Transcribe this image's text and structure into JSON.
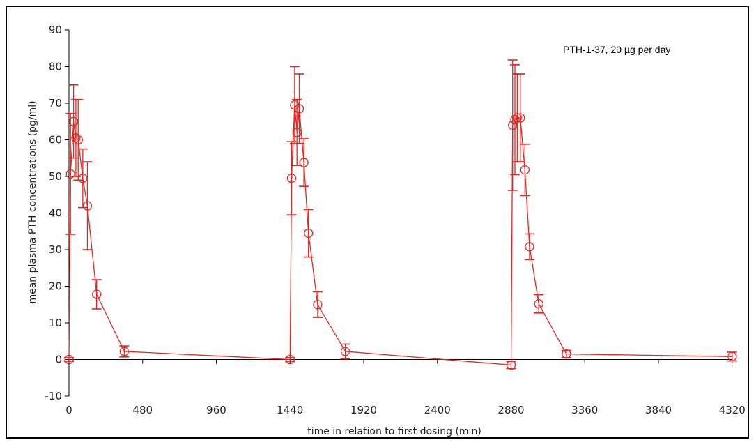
{
  "chart_data": {
    "type": "line",
    "xlabel": "time in relation to first dosing (min)",
    "ylabel": "mean plasma PTH concentrations (pg/ml)",
    "annotation": "PTH-1-37, 20 µg per day",
    "xlim": [
      0,
      4380
    ],
    "ylim": [
      -10,
      90
    ],
    "xticks": [
      0,
      480,
      960,
      1440,
      1920,
      2400,
      2880,
      3360,
      3840,
      4320
    ],
    "yticks": [
      -10,
      0,
      10,
      20,
      30,
      40,
      50,
      60,
      70,
      80,
      90
    ],
    "series": [
      {
        "color": "#e8241f",
        "marker": "circle",
        "points": [
          {
            "x": 0,
            "y": 0,
            "err": 0.5
          },
          {
            "x": 10,
            "y": 50.7,
            "err": 16.5
          },
          {
            "x": 30,
            "y": 65,
            "err": 10
          },
          {
            "x": 45,
            "y": 60.5,
            "err": 10.5
          },
          {
            "x": 60,
            "y": 60,
            "err": 11
          },
          {
            "x": 90,
            "y": 49.5,
            "err": 8
          },
          {
            "x": 120,
            "y": 42,
            "err": 12
          },
          {
            "x": 180,
            "y": 17.8,
            "err": 4
          },
          {
            "x": 360,
            "y": 2.2,
            "err": 1.5
          },
          {
            "x": 1440,
            "y": 0,
            "err": 0.5
          },
          {
            "x": 1450,
            "y": 49.5,
            "err": 10
          },
          {
            "x": 1470,
            "y": 69.5,
            "err": 10.5
          },
          {
            "x": 1485,
            "y": 62,
            "err": 9
          },
          {
            "x": 1500,
            "y": 68.5,
            "err": 9.5
          },
          {
            "x": 1530,
            "y": 53.8,
            "err": 6.5
          },
          {
            "x": 1560,
            "y": 34.5,
            "err": 6.5
          },
          {
            "x": 1620,
            "y": 15,
            "err": 3.5
          },
          {
            "x": 1800,
            "y": 2.2,
            "err": 2
          },
          {
            "x": 2880,
            "y": -1.5,
            "err": 1
          },
          {
            "x": 2890,
            "y": 64,
            "err": 17.8
          },
          {
            "x": 2905,
            "y": 65.5,
            "err": 15
          },
          {
            "x": 2920,
            "y": 66,
            "err": 12
          },
          {
            "x": 2940,
            "y": 66,
            "err": 12
          },
          {
            "x": 2970,
            "y": 51.8,
            "err": 7
          },
          {
            "x": 3000,
            "y": 30.8,
            "err": 3.5
          },
          {
            "x": 3060,
            "y": 15.2,
            "err": 2.5
          },
          {
            "x": 3240,
            "y": 1.5,
            "err": 1
          },
          {
            "x": 4320,
            "y": 0.8,
            "err": 1.2
          }
        ]
      }
    ]
  }
}
